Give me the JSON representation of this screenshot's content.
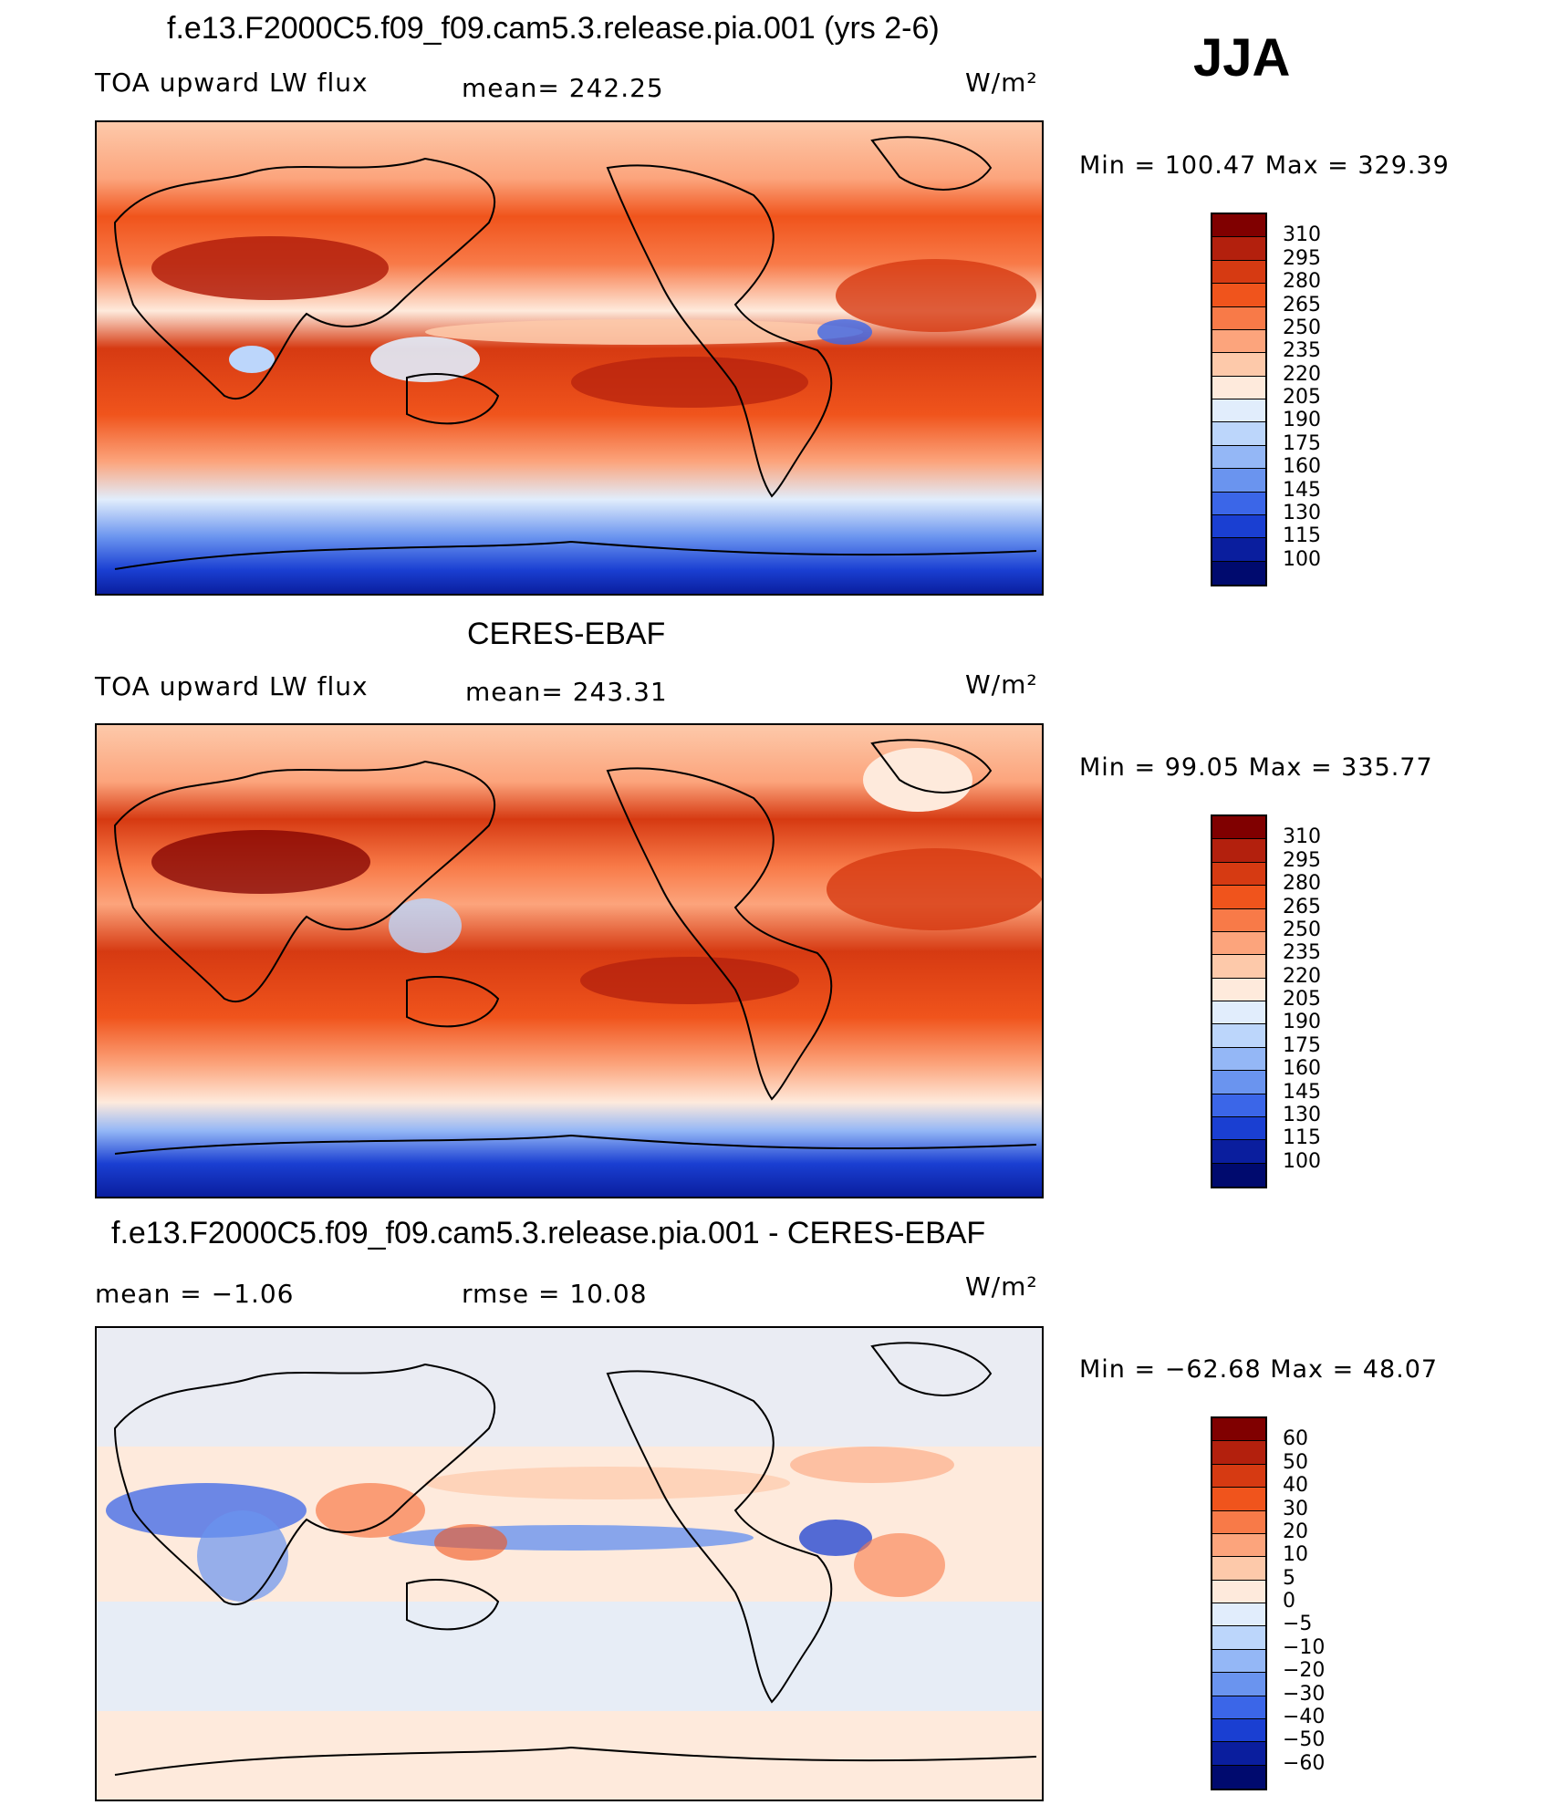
{
  "season": "JJA",
  "panels": [
    {
      "title": "f.e13.F2000C5.f09_f09.cam5.3.release.pia.001 (yrs 2-6)",
      "variable": "TOA upward LW flux",
      "stat": "mean= 242.25",
      "units": "W/m²",
      "minmax": "Min  =  100.47  Max  =  329.39",
      "levels": [
        "310",
        "295",
        "280",
        "265",
        "250",
        "235",
        "220",
        "205",
        "190",
        "175",
        "160",
        "145",
        "130",
        "115",
        "100"
      ]
    },
    {
      "title": "CERES-EBAF",
      "variable": "TOA upward LW flux",
      "stat": "mean= 243.31",
      "units": "W/m²",
      "minmax": "Min  =    99.05  Max  =  335.77",
      "levels": [
        "310",
        "295",
        "280",
        "265",
        "250",
        "235",
        "220",
        "205",
        "190",
        "175",
        "160",
        "145",
        "130",
        "115",
        "100"
      ]
    },
    {
      "title": "f.e13.F2000C5.f09_f09.cam5.3.release.pia.001 - CERES-EBAF",
      "variable": "mean  =    −1.06",
      "stat": "rmse  =    10.08",
      "units": "W/m²",
      "minmax": "Min  =  −62.68  Max  =    48.07",
      "levels": [
        "60",
        "50",
        "40",
        "30",
        "20",
        "10",
        "5",
        "0",
        "−5",
        "−10",
        "−20",
        "−30",
        "−40",
        "−50",
        "−60"
      ]
    }
  ],
  "colors": {
    "scale": [
      "#800000",
      "#b3200d",
      "#d63a12",
      "#f0541c",
      "#f87a48",
      "#fca47c",
      "#fdc9aa",
      "#feeadc",
      "#e1edfc",
      "#bcd6fb",
      "#94b7f6",
      "#6a94ef",
      "#3b66e8",
      "#1a3fd2",
      "#0a1e9e",
      "#000a6e"
    ]
  }
}
